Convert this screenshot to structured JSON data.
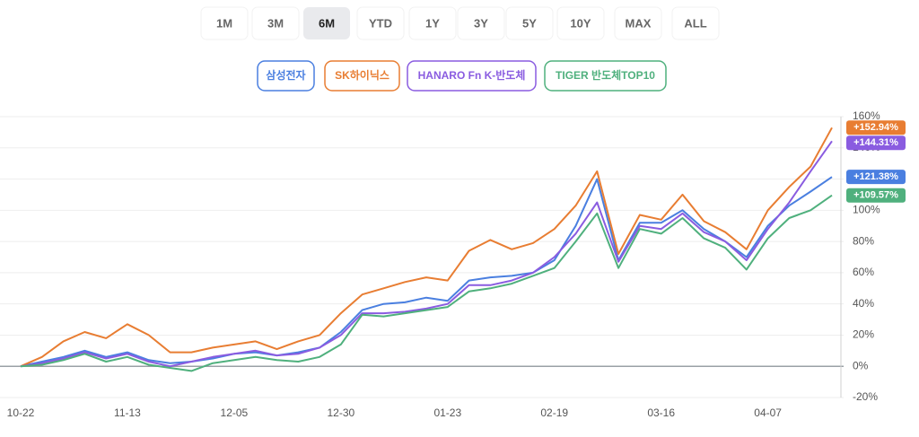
{
  "range_tabs": {
    "items": [
      "1M",
      "3M",
      "6M",
      "YTD",
      "1Y",
      "3Y",
      "5Y",
      "10Y",
      "MAX",
      "ALL"
    ],
    "active": 2
  },
  "chart_data": {
    "type": "line",
    "categories": [
      "10-22",
      null,
      null,
      null,
      null,
      "11-13",
      null,
      null,
      null,
      null,
      "12-05",
      null,
      null,
      null,
      null,
      "12-30",
      null,
      null,
      null,
      null,
      "01-23",
      null,
      null,
      null,
      null,
      "02-19",
      null,
      null,
      null,
      null,
      "03-16",
      null,
      null,
      null,
      null,
      "04-07",
      null,
      null,
      null
    ],
    "ylim": [
      -20,
      160
    ],
    "yticks": [
      {
        "value": -20,
        "label": "-20%"
      },
      {
        "value": 0,
        "label": "0%"
      },
      {
        "value": 20,
        "label": "20%"
      },
      {
        "value": 40,
        "label": "40%"
      },
      {
        "value": 60,
        "label": "60%"
      },
      {
        "value": 80,
        "label": "80%"
      },
      {
        "value": 100,
        "label": "100%"
      },
      {
        "value": 120,
        "label": "120%"
      },
      {
        "value": 140,
        "label": "140%"
      },
      {
        "value": 160,
        "label": "160%"
      }
    ],
    "grid": true,
    "series": [
      {
        "name": "삼성전자",
        "color": "#4a7fe0",
        "end_label": "+121.38%",
        "values": [
          0,
          3,
          6,
          10,
          6,
          9,
          4,
          2,
          3,
          5,
          8,
          9,
          7,
          9,
          12,
          22,
          36,
          40,
          41,
          44,
          42,
          55,
          57,
          58,
          60,
          68,
          90,
          120,
          68,
          92,
          92,
          100,
          88,
          80,
          70,
          90,
          103,
          112,
          121.38
        ]
      },
      {
        "name": "SK하이닉스",
        "color": "#e87d32",
        "end_label": "+152.94%",
        "values": [
          0,
          6,
          16,
          22,
          18,
          27,
          20,
          9,
          9,
          12,
          14,
          16,
          11,
          16,
          20,
          34,
          46,
          50,
          54,
          57,
          55,
          74,
          81,
          75,
          79,
          88,
          103,
          125,
          72,
          97,
          94,
          110,
          93,
          86,
          75,
          100,
          115,
          128,
          152.94
        ]
      },
      {
        "name": "HANARO Fn K-반도체",
        "color": "#8a5ce0",
        "end_label": "+144.31%",
        "values": [
          0,
          2,
          5,
          9,
          5,
          8,
          3,
          0,
          3,
          6,
          8,
          10,
          7,
          8,
          12,
          20,
          34,
          34,
          35,
          37,
          40,
          52,
          52,
          55,
          60,
          70,
          85,
          105,
          67,
          90,
          88,
          98,
          86,
          80,
          68,
          88,
          105,
          125,
          144.31
        ]
      },
      {
        "name": "TIGER 반도체TOP10",
        "color": "#4fb07d",
        "end_label": "+109.57%",
        "values": [
          0,
          1,
          4,
          8,
          3,
          6,
          1,
          -1,
          -3,
          2,
          4,
          6,
          4,
          3,
          6,
          14,
          33,
          32,
          34,
          36,
          38,
          48,
          50,
          53,
          58,
          63,
          80,
          98,
          63,
          88,
          85,
          95,
          82,
          76,
          62,
          82,
          95,
          100,
          109.57
        ]
      }
    ]
  }
}
